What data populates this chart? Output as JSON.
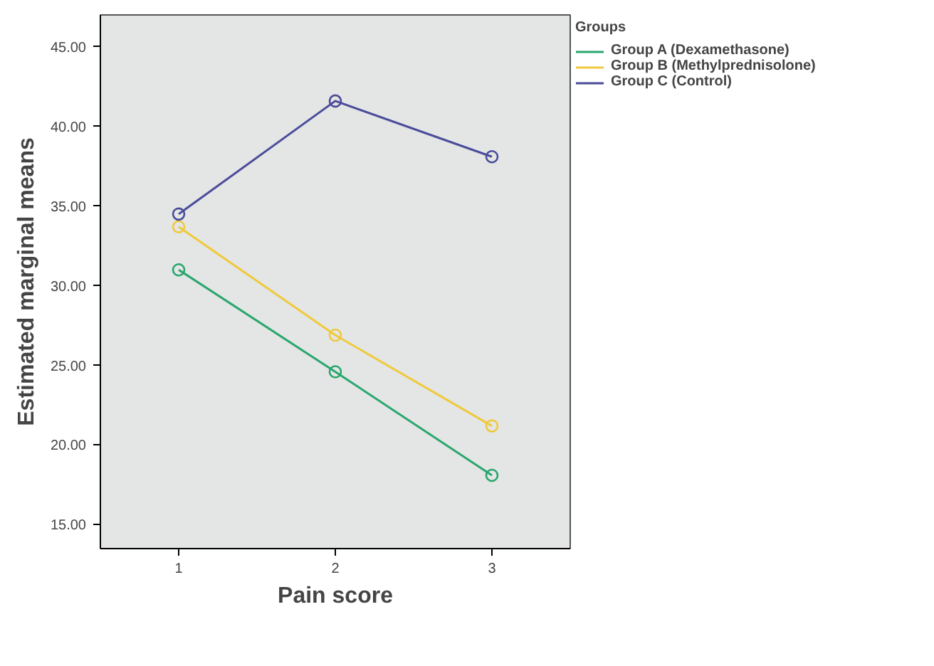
{
  "chart_data": {
    "type": "line",
    "xlabel": "Pain score",
    "ylabel": "Estimated marginal means",
    "legend_title": "Groups",
    "x": [
      1,
      2,
      3
    ],
    "xlim": [
      0.5,
      3.5
    ],
    "xticks": [
      1,
      2,
      3
    ],
    "ylim": [
      13.5,
      47
    ],
    "yticks": [
      {
        "value": 15,
        "label": "15.00"
      },
      {
        "value": 20,
        "label": "20.00"
      },
      {
        "value": 25,
        "label": "25.00"
      },
      {
        "value": 30,
        "label": "30.00"
      },
      {
        "value": 35,
        "label": "35.00"
      },
      {
        "value": 40,
        "label": "40.00"
      },
      {
        "value": 45,
        "label": "45.00"
      }
    ],
    "grid": false,
    "legend": "right",
    "marker": "circle",
    "line_style": "solid",
    "series": [
      {
        "name": "Group A (Dexamethasone)",
        "color": "#2aa66e",
        "values": [
          31.0,
          24.6,
          18.1
        ]
      },
      {
        "name": "Group B (Methylprednisolone)",
        "color": "#f0c93c",
        "values": [
          33.7,
          26.9,
          21.2
        ]
      },
      {
        "name": "Group C (Control)",
        "color": "#4b4b9a",
        "values": [
          34.5,
          41.6,
          38.1
        ]
      }
    ]
  }
}
